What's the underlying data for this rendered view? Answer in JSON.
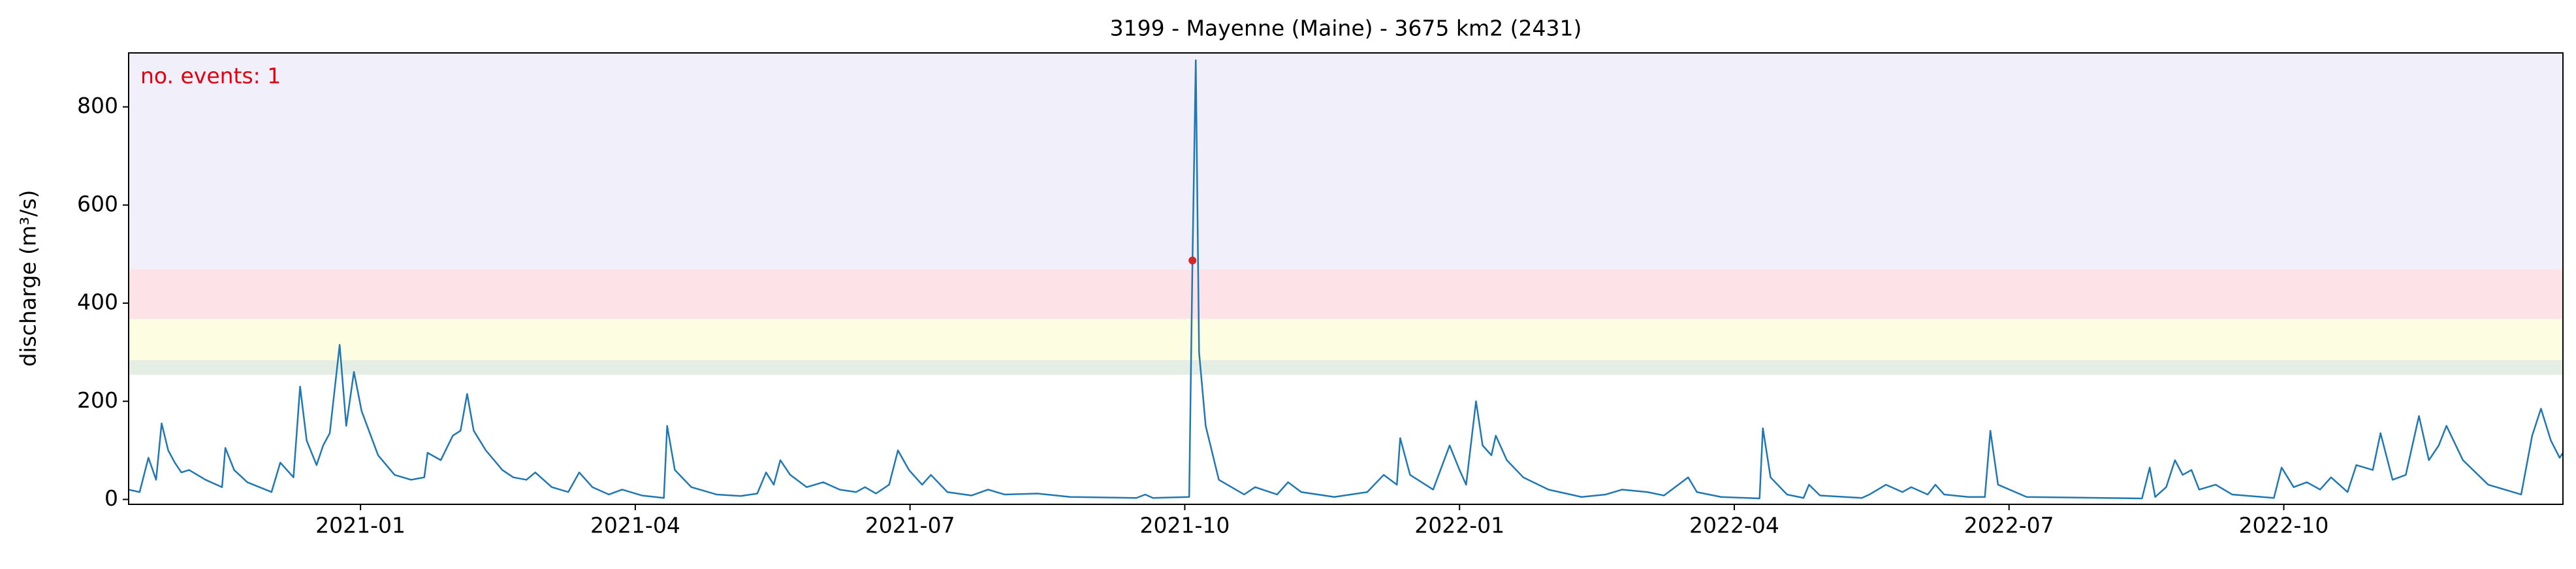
{
  "chart_data": {
    "type": "line",
    "title": "3199 - Mayenne (Maine) - 3675 km2 (2431)",
    "y_label": "discharge (m³/s)",
    "annotation": "no. events: 1",
    "annotation_color": "#e0000f",
    "color": "#1f77b4",
    "x": [
      2020.789,
      2020.799,
      2020.807,
      2020.814,
      2020.819,
      2020.825,
      2020.831,
      2020.837,
      2020.844,
      2020.859,
      2020.874,
      2020.877,
      2020.885,
      2020.897,
      2020.919,
      2020.927,
      2020.939,
      2020.945,
      2020.951,
      2020.96,
      2020.966,
      2020.972,
      2020.981,
      2020.987,
      2020.994,
      2021.001,
      2021.016,
      2021.031,
      2021.046,
      2021.058,
      2021.061,
      2021.073,
      2021.084,
      2021.091,
      2021.097,
      2021.103,
      2021.114,
      2021.129,
      2021.139,
      2021.151,
      2021.159,
      2021.174,
      2021.189,
      2021.199,
      2021.211,
      2021.226,
      2021.238,
      2021.256,
      2021.276,
      2021.279,
      2021.286,
      2021.301,
      2021.324,
      2021.346,
      2021.361,
      2021.369,
      2021.376,
      2021.382,
      2021.391,
      2021.406,
      2021.421,
      2021.436,
      2021.451,
      2021.459,
      2021.469,
      2021.481,
      2021.489,
      2021.499,
      2021.511,
      2021.519,
      2021.534,
      2021.556,
      2021.571,
      2021.586,
      2021.616,
      2021.646,
      2021.706,
      2021.714,
      2021.721,
      2021.754,
      2021.757,
      2021.76,
      2021.763,
      2021.769,
      2021.781,
      2021.804,
      2021.814,
      2021.834,
      2021.844,
      2021.856,
      2021.886,
      2021.916,
      2021.931,
      2021.943,
      2021.946,
      2021.955,
      2021.976,
      2021.991,
      2022.0,
      2022.006,
      2022.015,
      2022.021,
      2022.029,
      2022.033,
      2022.043,
      2022.058,
      2022.081,
      2022.111,
      2022.133,
      2022.148,
      2022.171,
      2022.186,
      2022.208,
      2022.216,
      2022.238,
      2022.273,
      2022.276,
      2022.283,
      2022.298,
      2022.313,
      2022.318,
      2022.328,
      2022.366,
      2022.373,
      2022.388,
      2022.403,
      2022.411,
      2022.426,
      2022.433,
      2022.441,
      2022.463,
      2022.478,
      2022.483,
      2022.49,
      2022.516,
      2022.621,
      2022.628,
      2022.633,
      2022.643,
      2022.651,
      2022.658,
      2022.666,
      2022.673,
      2022.688,
      2022.703,
      2022.741,
      2022.748,
      2022.759,
      2022.771,
      2022.783,
      2022.793,
      2022.808,
      2022.816,
      2022.831,
      2022.838,
      2022.849,
      2022.861,
      2022.873,
      2022.882,
      2022.891,
      2022.898,
      2022.913,
      2022.936,
      2022.966,
      2022.976,
      2022.984,
      2022.993,
      2023.001,
      2023.004
    ],
    "values": [
      20,
      15,
      85,
      40,
      155,
      100,
      75,
      55,
      60,
      40,
      25,
      105,
      60,
      35,
      15,
      75,
      45,
      230,
      120,
      70,
      110,
      135,
      315,
      150,
      260,
      180,
      90,
      50,
      40,
      45,
      95,
      80,
      130,
      140,
      215,
      140,
      100,
      60,
      45,
      40,
      55,
      25,
      15,
      55,
      25,
      10,
      20,
      8,
      3,
      150,
      60,
      25,
      10,
      7,
      12,
      55,
      30,
      80,
      50,
      25,
      35,
      20,
      15,
      25,
      12,
      30,
      100,
      60,
      30,
      50,
      15,
      8,
      20,
      10,
      12,
      5,
      3,
      10,
      3,
      5,
      487,
      895,
      300,
      150,
      40,
      10,
      25,
      10,
      35,
      15,
      5,
      15,
      50,
      30,
      125,
      50,
      20,
      110,
      60,
      30,
      200,
      110,
      90,
      130,
      80,
      45,
      20,
      5,
      10,
      20,
      15,
      8,
      45,
      15,
      5,
      2,
      145,
      45,
      10,
      3,
      30,
      8,
      3,
      10,
      30,
      15,
      25,
      10,
      30,
      10,
      5,
      5,
      140,
      30,
      5,
      2,
      65,
      5,
      25,
      80,
      50,
      60,
      20,
      30,
      10,
      3,
      65,
      25,
      35,
      20,
      45,
      15,
      70,
      60,
      135,
      40,
      50,
      170,
      80,
      110,
      150,
      80,
      30,
      10,
      130,
      185,
      120,
      85,
      95
    ],
    "events": [
      {
        "x": 2021.757,
        "y": 487,
        "color": "#d62728"
      }
    ],
    "bands": [
      {
        "from": 254,
        "to": 284,
        "color": "#e4eee4"
      },
      {
        "from": 284,
        "to": 368,
        "color": "#fdfde1"
      },
      {
        "from": 368,
        "to": 469,
        "color": "#fde3e7"
      },
      {
        "from": 469,
        "to": 910,
        "color": "#f1eff9"
      }
    ],
    "xlim": [
      2020.789,
      2023.004
    ],
    "ylim": [
      -10,
      910
    ],
    "xticks": [
      {
        "value": 2021,
        "label": "2021-01"
      },
      {
        "value": 2021.25,
        "label": "2021-04"
      },
      {
        "value": 2021.5,
        "label": "2021-07"
      },
      {
        "value": 2021.75,
        "label": "2021-10"
      },
      {
        "value": 2022,
        "label": "2022-01"
      },
      {
        "value": 2022.25,
        "label": "2022-04"
      },
      {
        "value": 2022.5,
        "label": "2022-07"
      },
      {
        "value": 2022.75,
        "label": "2022-10"
      }
    ],
    "yticks": [
      0,
      200,
      400,
      600,
      800
    ]
  }
}
